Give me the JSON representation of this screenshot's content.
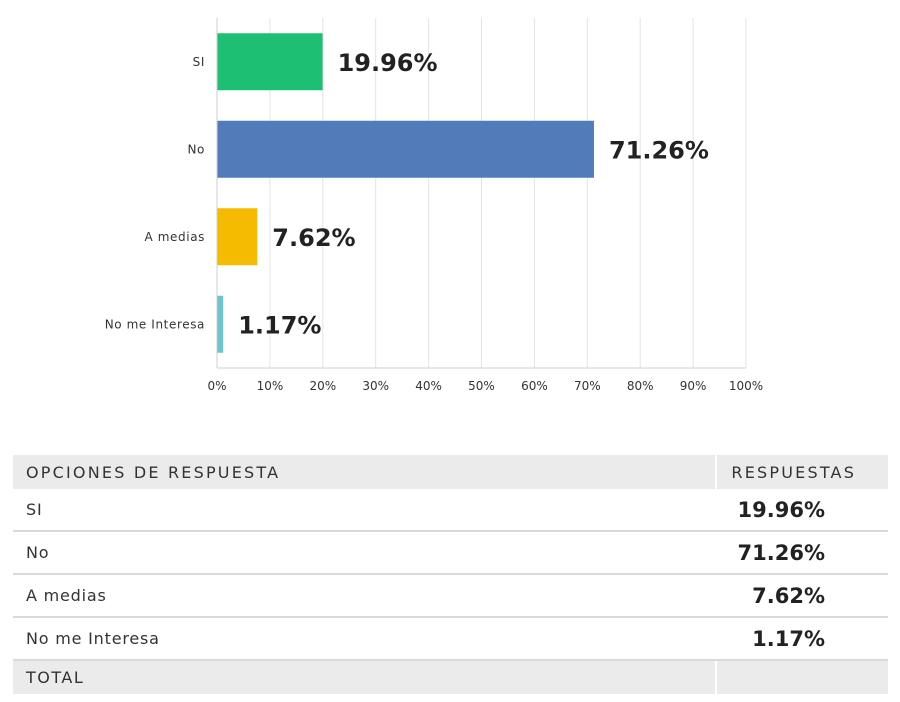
{
  "chart_data": {
    "type": "bar",
    "orientation": "horizontal",
    "categories": [
      "SI",
      "No",
      "A medias",
      "No me Interesa"
    ],
    "values": [
      19.96,
      71.26,
      7.62,
      1.17
    ],
    "value_labels": [
      "19.96%",
      "71.26%",
      "7.62%",
      "1.17%"
    ],
    "colors": [
      "#1dbf73",
      "#517bb9",
      "#f5bb00",
      "#6bc4d0"
    ],
    "xlim": [
      0,
      100
    ],
    "x_ticks": [
      "0%",
      "10%",
      "20%",
      "30%",
      "40%",
      "50%",
      "60%",
      "70%",
      "80%",
      "90%",
      "100%"
    ],
    "grid": true,
    "title": "",
    "xlabel": "",
    "ylabel": ""
  },
  "table": {
    "header": {
      "option": "OPCIONES DE RESPUESTA",
      "responses": "RESPUESTAS"
    },
    "rows": [
      {
        "option": "SI",
        "value": "19.96%"
      },
      {
        "option": "No",
        "value": "71.26%"
      },
      {
        "option": "A medias",
        "value": "7.62%"
      },
      {
        "option": "No me Interesa",
        "value": "1.17%"
      }
    ],
    "total": {
      "label": "TOTAL",
      "value": ""
    }
  }
}
